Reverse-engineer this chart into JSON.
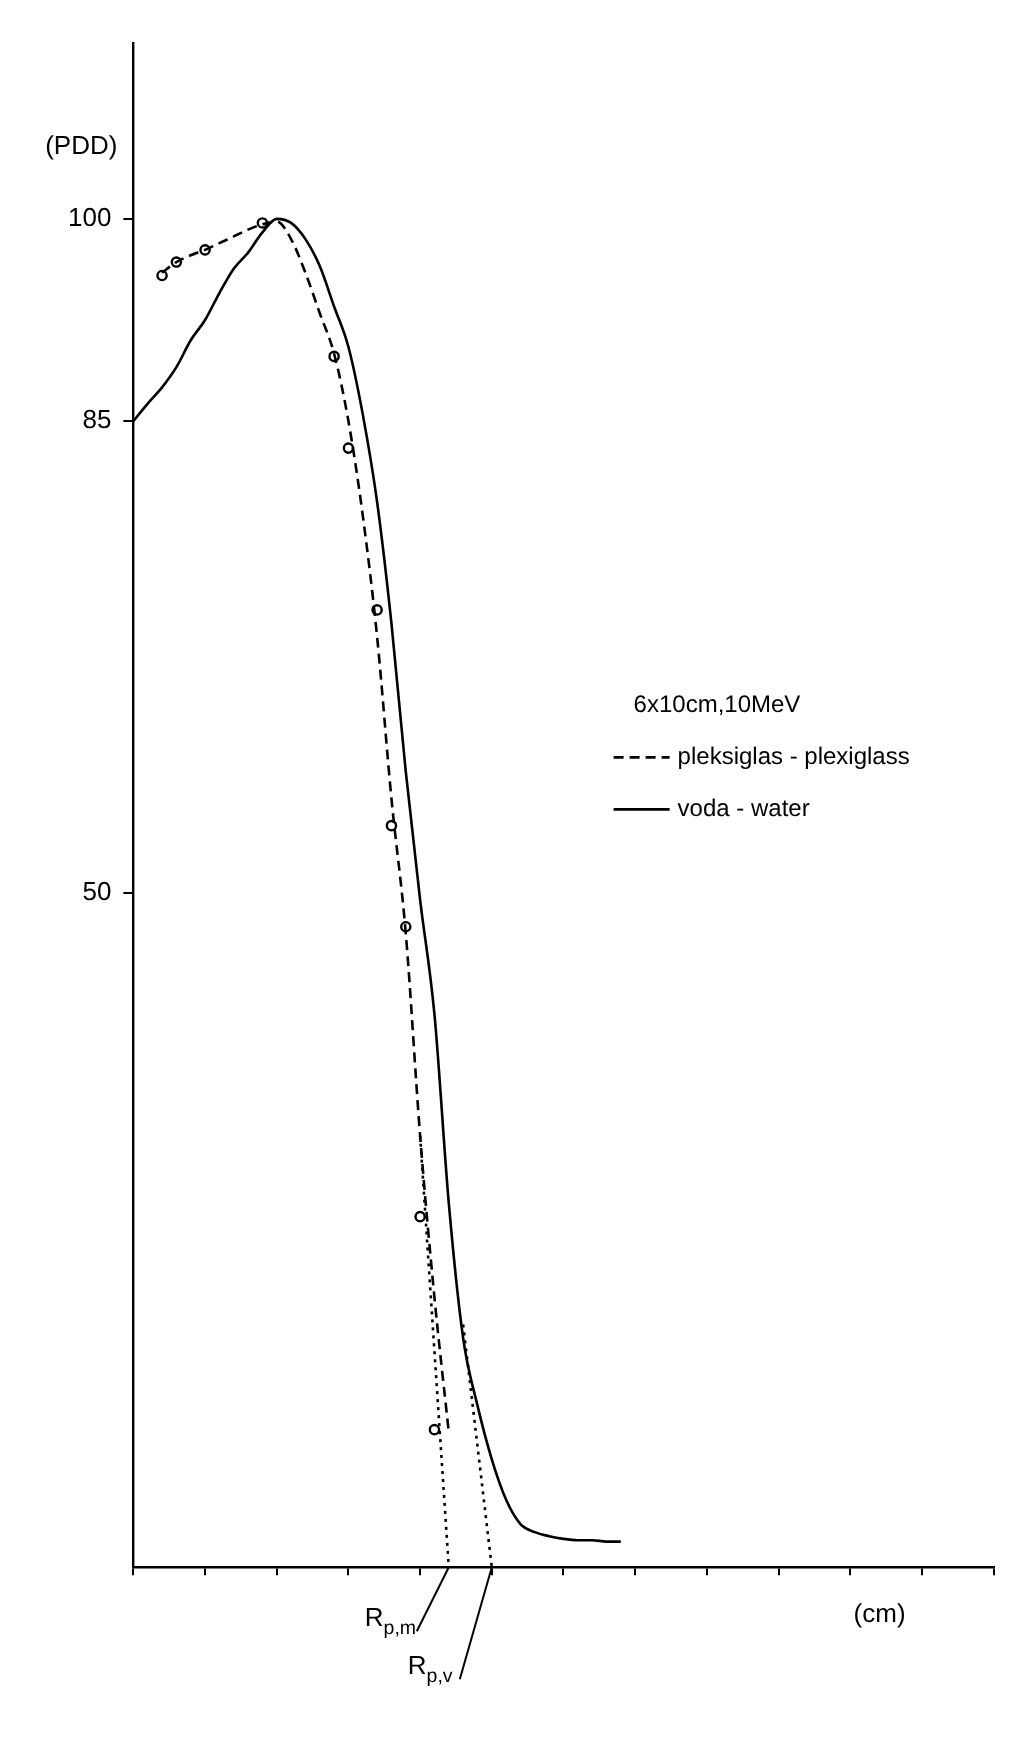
{
  "chart_data": {
    "type": "line",
    "legend_title": "6x10cm,10MeV",
    "xlabel": "(cm)",
    "ylabel": "(PDD)",
    "annotations": [
      "R$_{p,m}$",
      "R$_{p,v}$"
    ],
    "categories": [
      null,
      null,
      null,
      null,
      null,
      null,
      null,
      null,
      null,
      null,
      null,
      null,
      null,
      null,
      null,
      null,
      null,
      null,
      null,
      null,
      null,
      null,
      null,
      null,
      null,
      null,
      null,
      null,
      null,
      null,
      null,
      null,
      null,
      null,
      null,
      null,
      null,
      null,
      null,
      null,
      null,
      null,
      null,
      null,
      null,
      null,
      null,
      null,
      null,
      null,
      null,
      null,
      null,
      null,
      null,
      null,
      null,
      null,
      null,
      null,
      null
    ],
    "series": [
      {
        "name": "pleksiglas - plexiglass",
        "type": "line",
        "line_style": "dashed",
        "color": "#000000",
        "values": [
          null,
          null,
          96,
          96.8,
          97.3,
          97.7,
          98.2,
          98.7,
          99.2,
          99.6,
          99.8,
          98.5,
          96,
          93,
          90,
          85,
          78,
          69,
          57,
          47,
          32,
          20,
          10,
          null,
          null,
          null,
          null,
          null,
          null,
          null,
          null,
          null,
          null,
          null,
          null,
          null,
          null,
          null,
          null,
          null,
          null,
          null,
          null,
          null,
          null,
          null,
          null,
          null,
          null,
          null,
          null,
          null,
          null,
          null,
          null,
          null,
          null,
          null,
          null,
          null,
          null
        ]
      },
      {
        "name": "voda - water",
        "type": "line",
        "line_style": "solid",
        "color": "#000000",
        "values": [
          85,
          86.3,
          87.5,
          89,
          91,
          92.5,
          94.5,
          96.3,
          97.5,
          99,
          100,
          99.7,
          98.5,
          96.5,
          93.5,
          90.5,
          85.5,
          79,
          70,
          59,
          49.5,
          41,
          27,
          17,
          12,
          8,
          5,
          3.2,
          2.6,
          2.3,
          2.1,
          2,
          2,
          1.9,
          1.9,
          null,
          null,
          null,
          null,
          null,
          null,
          null,
          null,
          null,
          null,
          null,
          null,
          null,
          null,
          null,
          null,
          null,
          null,
          null,
          null,
          null,
          null,
          null,
          null,
          null,
          null
        ]
      },
      {
        "type": "scatter",
        "marker": "circle",
        "color": "#000000",
        "values": [
          null,
          null,
          95.8,
          96.8,
          null,
          97.7,
          null,
          null,
          null,
          99.7,
          null,
          null,
          null,
          null,
          89.8,
          83,
          null,
          71,
          55,
          47.5,
          26,
          10.2,
          null,
          null,
          null,
          null,
          null,
          null,
          null,
          null,
          null,
          null,
          null,
          null,
          null,
          null,
          null,
          null,
          null,
          null,
          null,
          null,
          null,
          null,
          null,
          null,
          null,
          null,
          null,
          null,
          null,
          null,
          null,
          null,
          null,
          null,
          null,
          null,
          null,
          null,
          null
        ]
      },
      {
        "type": "line",
        "line_style": "dotted",
        "color": "#000000",
        "values": [
          null,
          null,
          null,
          null,
          null,
          null,
          null,
          null,
          null,
          null,
          null,
          null,
          null,
          null,
          null,
          null,
          null,
          null,
          null,
          null,
          32,
          16,
          0,
          null,
          null,
          null,
          null,
          null,
          null,
          null,
          null,
          null,
          null,
          null,
          null,
          null,
          null,
          null,
          null,
          null,
          null,
          null,
          null,
          null,
          null,
          null,
          null,
          null,
          null,
          null,
          null,
          null,
          null,
          null,
          null,
          null,
          null,
          null,
          null,
          null,
          null
        ]
      },
      {
        "type": "line",
        "line_style": "dotted",
        "color": "#000000",
        "values": [
          null,
          null,
          null,
          null,
          null,
          null,
          null,
          null,
          null,
          null,
          null,
          null,
          null,
          null,
          null,
          null,
          null,
          null,
          null,
          null,
          null,
          null,
          null,
          18,
          9,
          0,
          null,
          null,
          null,
          null,
          null,
          null,
          null,
          null,
          null,
          null,
          null,
          null,
          null,
          null,
          null,
          null,
          null,
          null,
          null,
          null,
          null,
          null,
          null,
          null,
          null,
          null,
          null,
          null,
          null,
          null,
          null,
          null,
          null,
          null,
          null
        ]
      }
    ],
    "ylim": [
      0,
      113
    ],
    "yticks": [
      50,
      85,
      100
    ],
    "grid": false,
    "legend": "right"
  }
}
